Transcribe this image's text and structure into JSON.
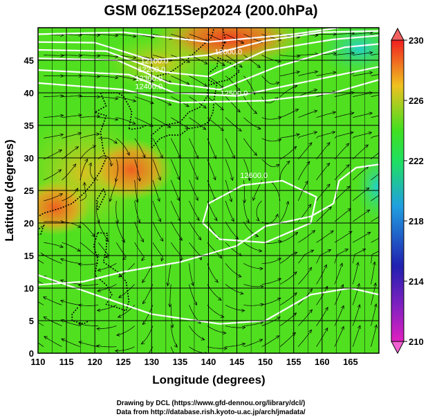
{
  "title": "GSM 06Z15Sep2024 (200.0hPa)",
  "x_axis": {
    "label": "Longitude (degrees)",
    "min": 110,
    "max": 170,
    "ticks": [
      "110",
      "115",
      "120",
      "125",
      "130",
      "135",
      "140",
      "145",
      "150",
      "155",
      "160",
      "165"
    ]
  },
  "y_axis": {
    "label": "Latitude  (degrees)",
    "min": 0,
    "max": 50,
    "ticks": [
      "0",
      "5",
      "10",
      "15",
      "20",
      "25",
      "30",
      "35",
      "40",
      "45"
    ]
  },
  "colorbar": {
    "min": 210,
    "max": 230,
    "ticks": [
      "210",
      "214",
      "218",
      "222",
      "226",
      "230"
    ],
    "colors": [
      "#e020c0",
      "#2020b0",
      "#20a0e0",
      "#20e060",
      "#40e020",
      "#f0c020",
      "#f02020"
    ]
  },
  "contours": [
    {
      "label": "12000.0",
      "lon": 143.5,
      "lat": 45.9
    },
    {
      "label": "12100.0",
      "lon": 130.5,
      "lat": 44.5
    },
    {
      "label": "12200.0",
      "lon": 130.0,
      "lat": 43.2
    },
    {
      "label": "12300.0",
      "lon": 129.5,
      "lat": 41.8
    },
    {
      "label": "12400.0",
      "lon": 129.5,
      "lat": 40.6
    },
    {
      "label": "12500.0",
      "lon": 144.5,
      "lat": 39.5
    },
    {
      "label": "12600.0",
      "lon": 148.0,
      "lat": 26.9
    }
  ],
  "credits": {
    "line1": "Drawing by DCL (https://www.gfd-dennou.org/library/dcl/)",
    "line2": "Data from http://database.rish.kyoto-u.ac.jp/arch/jmadata/"
  }
}
